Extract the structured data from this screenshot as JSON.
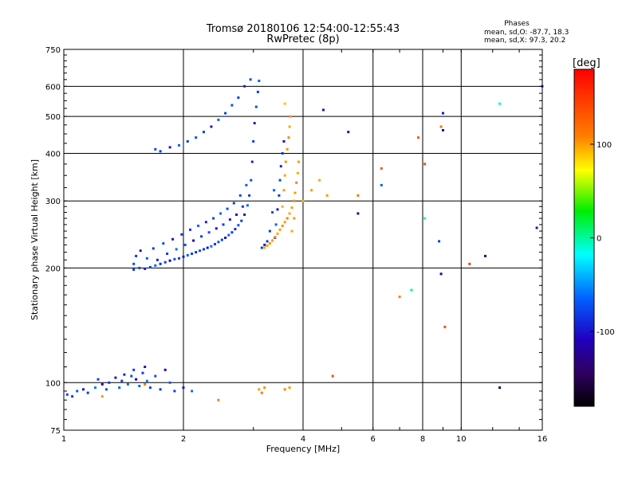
{
  "chart_data": {
    "type": "scatter",
    "title": "Tromsø 20180106 12:54:00-12:55:43",
    "subtitle": "RwPretec (8p)",
    "stats": {
      "heading": "Phases",
      "line1": "mean, sd,O: -87.7, 18.3",
      "line2": "mean, sd,X:  97.3, 20.2"
    },
    "xlabel": "Frequency [MHz]",
    "ylabel": "Stationary phase Virtual Height [km]",
    "x_scale": "log",
    "y_scale": "log",
    "xlim": [
      1,
      16
    ],
    "ylim": [
      75,
      750
    ],
    "x_ticks": [
      1,
      2,
      4,
      6,
      8,
      10,
      16
    ],
    "y_ticks": [
      75,
      100,
      200,
      300,
      400,
      500,
      600,
      750
    ],
    "grid": true,
    "colorbar": {
      "label": "[deg]",
      "range": [
        -180,
        180
      ],
      "ticks": [
        100,
        0,
        -100
      ],
      "colormap": "rainbow"
    },
    "series": [
      {
        "points": [
          [
            1.02,
            93,
            -95
          ],
          [
            1.05,
            92,
            -100
          ],
          [
            1.08,
            95,
            -90
          ],
          [
            1.12,
            96,
            -110
          ],
          [
            1.15,
            94,
            -100
          ],
          [
            1.2,
            97,
            -80
          ],
          [
            1.22,
            102,
            -100
          ],
          [
            1.25,
            99,
            -120
          ],
          [
            1.28,
            96,
            -95
          ],
          [
            1.3,
            100,
            -100
          ],
          [
            1.35,
            103,
            -110
          ],
          [
            1.38,
            97,
            -90
          ],
          [
            1.4,
            101,
            -100
          ],
          [
            1.42,
            105,
            -105
          ],
          [
            1.45,
            99,
            -85
          ],
          [
            1.48,
            104,
            -95
          ],
          [
            1.5,
            108,
            -100
          ],
          [
            1.52,
            102,
            -120
          ],
          [
            1.55,
            98,
            -90
          ],
          [
            1.58,
            106,
            -100
          ],
          [
            1.6,
            110,
            -110
          ],
          [
            1.62,
            101,
            -80
          ],
          [
            1.65,
            97,
            -100
          ],
          [
            1.7,
            104,
            -95
          ],
          [
            1.75,
            96,
            -100
          ],
          [
            1.8,
            108,
            -120
          ],
          [
            1.85,
            100,
            -90
          ],
          [
            1.9,
            95,
            -100
          ],
          [
            2.0,
            97,
            -110
          ],
          [
            2.1,
            95,
            -85
          ],
          [
            1.5,
            198,
            -100
          ],
          [
            1.55,
            200,
            -95
          ],
          [
            1.6,
            199,
            -110
          ],
          [
            1.65,
            201,
            -100
          ],
          [
            1.7,
            203,
            -90
          ],
          [
            1.75,
            205,
            -105
          ],
          [
            1.8,
            207,
            -100
          ],
          [
            1.85,
            209,
            -120
          ],
          [
            1.9,
            211,
            -95
          ],
          [
            1.95,
            212,
            -100
          ],
          [
            2.0,
            214,
            -110
          ],
          [
            2.05,
            216,
            -90
          ],
          [
            2.1,
            218,
            -100
          ],
          [
            2.15,
            220,
            -105
          ],
          [
            2.2,
            222,
            -95
          ],
          [
            2.25,
            224,
            -100
          ],
          [
            2.3,
            226,
            -110
          ],
          [
            2.35,
            228,
            -85
          ],
          [
            2.4,
            231,
            -100
          ],
          [
            2.45,
            234,
            -95
          ],
          [
            2.5,
            237,
            -100
          ],
          [
            2.55,
            240,
            -120
          ],
          [
            2.6,
            244,
            -90
          ],
          [
            2.65,
            248,
            -100
          ],
          [
            2.7,
            253,
            -105
          ],
          [
            2.75,
            259,
            -95
          ],
          [
            2.8,
            266,
            -100
          ],
          [
            2.85,
            276,
            -110
          ],
          [
            2.9,
            292,
            -90
          ],
          [
            2.93,
            310,
            -100
          ],
          [
            2.96,
            340,
            -95
          ],
          [
            2.98,
            380,
            -105
          ],
          [
            3.0,
            430,
            -100
          ],
          [
            3.02,
            480,
            -110
          ],
          [
            3.05,
            530,
            -95
          ],
          [
            3.08,
            580,
            -100
          ],
          [
            3.1,
            620,
            -90
          ],
          [
            1.5,
            205,
            -95
          ],
          [
            1.52,
            215,
            -100
          ],
          [
            1.56,
            222,
            -110
          ],
          [
            1.62,
            212,
            -90
          ],
          [
            1.68,
            225,
            -100
          ],
          [
            1.72,
            210,
            -105
          ],
          [
            1.78,
            232,
            -95
          ],
          [
            1.82,
            218,
            -100
          ],
          [
            1.88,
            238,
            -110
          ],
          [
            1.92,
            224,
            -85
          ],
          [
            1.98,
            245,
            -100
          ],
          [
            2.02,
            230,
            -95
          ],
          [
            2.08,
            252,
            -100
          ],
          [
            2.12,
            236,
            -120
          ],
          [
            2.18,
            258,
            -90
          ],
          [
            2.22,
            242,
            -100
          ],
          [
            2.28,
            264,
            -105
          ],
          [
            2.32,
            248,
            -95
          ],
          [
            2.38,
            270,
            -100
          ],
          [
            2.42,
            254,
            -110
          ],
          [
            2.48,
            278,
            -90
          ],
          [
            2.52,
            260,
            -100
          ],
          [
            2.58,
            286,
            -95
          ],
          [
            2.62,
            268,
            -105
          ],
          [
            2.68,
            296,
            -100
          ],
          [
            2.72,
            276,
            -110
          ],
          [
            2.78,
            310,
            -95
          ],
          [
            2.82,
            290,
            -100
          ],
          [
            2.88,
            330,
            -90
          ],
          [
            1.7,
            410,
            -95
          ],
          [
            1.75,
            405,
            -100
          ],
          [
            1.85,
            415,
            -110
          ],
          [
            1.95,
            420,
            -90
          ],
          [
            2.05,
            430,
            -100
          ],
          [
            2.15,
            440,
            -95
          ],
          [
            2.25,
            455,
            -100
          ],
          [
            2.35,
            470,
            -110
          ],
          [
            2.45,
            490,
            -90
          ],
          [
            2.55,
            510,
            -100
          ],
          [
            2.65,
            535,
            -95
          ],
          [
            2.75,
            560,
            -100
          ],
          [
            2.85,
            600,
            -105
          ],
          [
            2.95,
            625,
            -95
          ],
          [
            3.4,
            240,
            -100
          ],
          [
            3.42,
            260,
            -90
          ],
          [
            3.45,
            285,
            -110
          ],
          [
            3.48,
            310,
            -100
          ],
          [
            3.5,
            340,
            -95
          ],
          [
            3.52,
            370,
            -105
          ],
          [
            3.55,
            400,
            -100
          ],
          [
            3.58,
            430,
            -110
          ],
          [
            3.3,
            250,
            -100
          ],
          [
            3.35,
            280,
            -95
          ],
          [
            3.38,
            320,
            -90
          ],
          [
            3.25,
            235,
            -100
          ],
          [
            3.2,
            230,
            -110
          ],
          [
            3.15,
            226,
            -100
          ]
        ]
      },
      {
        "points": [
          [
            1.25,
            92,
            100
          ],
          [
            1.6,
            99,
            120
          ],
          [
            2.45,
            90,
            110
          ],
          [
            3.1,
            96,
            100
          ],
          [
            3.15,
            94,
            115
          ],
          [
            3.2,
            97,
            105
          ],
          [
            3.6,
            96,
            110
          ],
          [
            3.7,
            97,
            100
          ],
          [
            4.75,
            104,
            140
          ],
          [
            3.2,
            226,
            95
          ],
          [
            3.25,
            229,
            100
          ],
          [
            3.3,
            232,
            105
          ],
          [
            3.35,
            236,
            100
          ],
          [
            3.4,
            241,
            110
          ],
          [
            3.45,
            246,
            95
          ],
          [
            3.5,
            252,
            100
          ],
          [
            3.55,
            258,
            105
          ],
          [
            3.6,
            264,
            100
          ],
          [
            3.65,
            270,
            110
          ],
          [
            3.7,
            278,
            95
          ],
          [
            3.75,
            288,
            100
          ],
          [
            3.8,
            300,
            105
          ],
          [
            3.82,
            315,
            100
          ],
          [
            3.85,
            335,
            110
          ],
          [
            3.88,
            355,
            95
          ],
          [
            3.9,
            380,
            100
          ],
          [
            3.55,
            290,
            90
          ],
          [
            3.58,
            320,
            100
          ],
          [
            3.6,
            350,
            95
          ],
          [
            3.62,
            380,
            105
          ],
          [
            3.65,
            410,
            100
          ],
          [
            3.68,
            440,
            110
          ],
          [
            3.7,
            470,
            95
          ],
          [
            3.72,
            500,
            100
          ],
          [
            3.6,
            540,
            85
          ],
          [
            3.75,
            250,
            95
          ],
          [
            3.8,
            270,
            100
          ],
          [
            4.0,
            300,
            90
          ],
          [
            4.2,
            320,
            100
          ],
          [
            4.4,
            340,
            95
          ],
          [
            4.6,
            310,
            100
          ],
          [
            5.5,
            310,
            115
          ],
          [
            6.3,
            365,
            130
          ],
          [
            7.8,
            440,
            135
          ],
          [
            8.1,
            375,
            140
          ],
          [
            8.9,
            470,
            120
          ],
          [
            10.5,
            205,
            150
          ],
          [
            9.1,
            140,
            140
          ],
          [
            7.0,
            168,
            110
          ]
        ]
      },
      {
        "points": [
          [
            4.5,
            520,
            -110
          ],
          [
            5.2,
            455,
            -120
          ],
          [
            5.5,
            278,
            -130
          ],
          [
            6.3,
            330,
            -90
          ],
          [
            7.5,
            175,
            -10
          ],
          [
            8.1,
            270,
            -20
          ],
          [
            8.8,
            235,
            -100
          ],
          [
            8.9,
            193,
            -120
          ],
          [
            9.0,
            510,
            -110
          ],
          [
            9.0,
            460,
            -120
          ],
          [
            11.5,
            215,
            -140
          ],
          [
            12.5,
            97,
            -150
          ],
          [
            12.5,
            540,
            -20
          ],
          [
            15.5,
            255,
            -110
          ],
          [
            16,
            600,
            -100
          ]
        ]
      }
    ]
  }
}
